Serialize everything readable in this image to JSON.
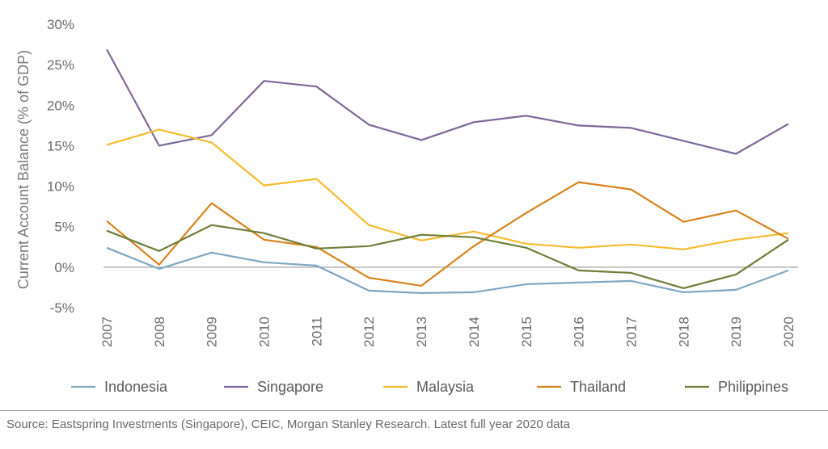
{
  "chart_data": {
    "type": "line",
    "ylabel": "Current Account Balance (% of GDP)",
    "xlabel": "",
    "x": [
      "2007",
      "2008",
      "2009",
      "2010",
      "2011",
      "2012",
      "2013",
      "2014",
      "2015",
      "2016",
      "2017",
      "2018",
      "2019",
      "2020"
    ],
    "ylim": [
      -5,
      30
    ],
    "yticks": [
      -5,
      0,
      5,
      10,
      15,
      20,
      25,
      30
    ],
    "ytick_labels": [
      "-5%",
      "0%",
      "5%",
      "10%",
      "15%",
      "20%",
      "25%",
      "30%"
    ],
    "grid": false,
    "legend_position": "bottom",
    "series": [
      {
        "name": "Indonesia",
        "color": "#7fa7c1",
        "values": [
          2.4,
          -0.2,
          1.8,
          0.6,
          0.2,
          -2.9,
          -3.2,
          -3.1,
          -2.1,
          -1.9,
          -1.7,
          -3.1,
          -2.8,
          -0.4
        ]
      },
      {
        "name": "Singapore",
        "color": "#80679a",
        "values": [
          26.9,
          15.0,
          16.3,
          23.0,
          22.3,
          17.6,
          15.7,
          17.9,
          18.7,
          17.5,
          17.2,
          15.6,
          14.0,
          17.7
        ]
      },
      {
        "name": "Malaysia",
        "color": "#f6bc2f",
        "values": [
          15.1,
          17.0,
          15.4,
          10.1,
          10.9,
          5.2,
          3.3,
          4.4,
          2.9,
          2.4,
          2.8,
          2.2,
          3.4,
          4.2
        ]
      },
      {
        "name": "Thailand",
        "color": "#d9821a",
        "values": [
          5.7,
          0.3,
          7.9,
          3.4,
          2.5,
          -1.3,
          -2.3,
          2.6,
          6.7,
          10.5,
          9.6,
          5.6,
          7.0,
          3.5
        ]
      },
      {
        "name": "Philippines",
        "color": "#6f7e3a",
        "values": [
          4.5,
          2.0,
          5.2,
          4.2,
          2.3,
          2.6,
          4.0,
          3.7,
          2.4,
          -0.4,
          -0.7,
          -2.6,
          -0.9,
          3.4
        ]
      }
    ]
  },
  "footer": {
    "source": "Source: Eastspring Investments (Singapore), CEIC, Morgan Stanley Research. Latest full year 2020 data"
  }
}
